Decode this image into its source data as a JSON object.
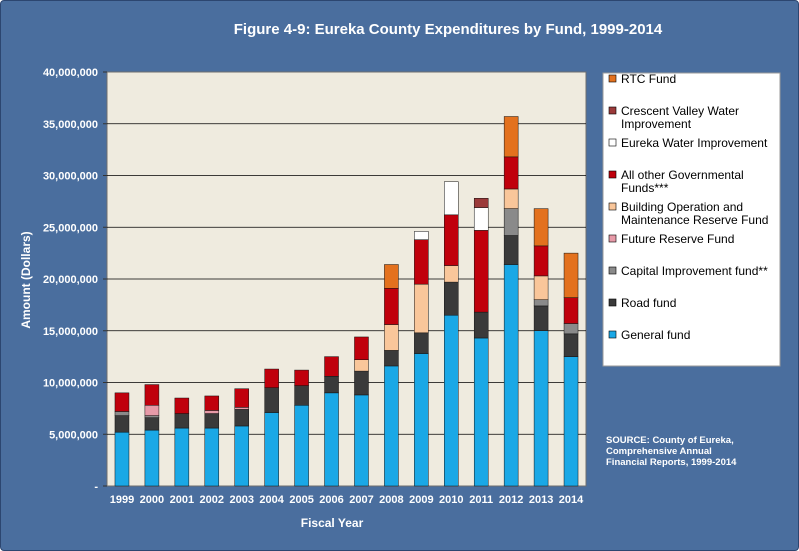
{
  "chart_data": {
    "type": "bar",
    "stacked": true,
    "title": "Figure 4-9: Eureka County Expenditures by Fund, 1999-2014",
    "xlabel": "Fiscal Year",
    "ylabel": "Amount (Dollars)",
    "ylim": [
      0,
      40000000
    ],
    "yticks": [
      0,
      5000000,
      10000000,
      15000000,
      20000000,
      25000000,
      30000000,
      35000000,
      40000000
    ],
    "ytick_labels": [
      "-",
      "5,000,000",
      "10,000,000",
      "15,000,000",
      "20,000,000",
      "25,000,000",
      "30,000,000",
      "35,000,000",
      "40,000,000"
    ],
    "grid": true,
    "legend_position": "right",
    "categories": [
      "1999",
      "2000",
      "2001",
      "2002",
      "2003",
      "2004",
      "2005",
      "2006",
      "2007",
      "2008",
      "2009",
      "2010",
      "2011",
      "2012",
      "2013",
      "2014"
    ],
    "series": [
      {
        "name": "General fund",
        "color": "#1aa8e6",
        "values": [
          5200000,
          5400000,
          5600000,
          5600000,
          5800000,
          7100000,
          7800000,
          9000000,
          8800000,
          11600000,
          12800000,
          16500000,
          14300000,
          21400000,
          15000000,
          12500000
        ]
      },
      {
        "name": "Road fund",
        "color": "#3a3a3a",
        "values": [
          1600000,
          1200000,
          1400000,
          1400000,
          1600000,
          2400000,
          1900000,
          1600000,
          2300000,
          1500000,
          2000000,
          3200000,
          2500000,
          2800000,
          2400000,
          2200000
        ]
      },
      {
        "name": "Capital Improvement fund**",
        "color": "#8a8a8a",
        "values": [
          400000,
          200000,
          0,
          0,
          0,
          0,
          0,
          0,
          0,
          0,
          0,
          0,
          0,
          2600000,
          600000,
          1000000
        ]
      },
      {
        "name": "Future Reserve Fund",
        "color": "#e79aa8",
        "values": [
          0,
          1000000,
          0,
          300000,
          200000,
          0,
          0,
          0,
          0,
          0,
          0,
          0,
          0,
          0,
          0,
          0
        ]
      },
      {
        "name": "Building Operation and Maintenance Reserve Fund",
        "color": "#f9c69a",
        "values": [
          0,
          0,
          0,
          0,
          0,
          0,
          0,
          0,
          1100000,
          2500000,
          4700000,
          1600000,
          0,
          1900000,
          2300000,
          0
        ]
      },
      {
        "name": "All other Governmental Funds***",
        "color": "#c0000c",
        "values": [
          1800000,
          2000000,
          1500000,
          1400000,
          1800000,
          1800000,
          1500000,
          1900000,
          2200000,
          3500000,
          4300000,
          4900000,
          7900000,
          3100000,
          2900000,
          2500000
        ]
      },
      {
        "name": "Eureka Water Improvement",
        "color": "#ffffff",
        "values": [
          0,
          0,
          0,
          0,
          0,
          0,
          0,
          0,
          0,
          0,
          800000,
          3200000,
          2200000,
          0,
          0,
          0
        ]
      },
      {
        "name": "Crescent Valley Water Improvement",
        "color": "#9b3a3a",
        "values": [
          0,
          0,
          0,
          0,
          0,
          0,
          0,
          0,
          0,
          0,
          0,
          0,
          900000,
          0,
          0,
          0
        ]
      },
      {
        "name": "RTC Fund",
        "color": "#e3711e",
        "values": [
          0,
          0,
          0,
          0,
          0,
          0,
          0,
          0,
          0,
          2300000,
          0,
          0,
          0,
          3900000,
          3600000,
          4300000
        ]
      }
    ],
    "legend_order": [
      {
        "series": "RTC Fund",
        "lines": [
          "RTC Fund"
        ]
      },
      {
        "series": "Crescent Valley Water Improvement",
        "lines": [
          "Crescent Valley Water",
          "Improvement"
        ]
      },
      {
        "series": "Eureka Water Improvement",
        "lines": [
          "Eureka Water Improvement"
        ]
      },
      {
        "series": "All other Governmental Funds***",
        "lines": [
          "All other Governmental",
          "Funds***"
        ]
      },
      {
        "series": "Building Operation and Maintenance Reserve Fund",
        "lines": [
          "Building Operation and",
          "Maintenance Reserve Fund"
        ]
      },
      {
        "series": "Future Reserve Fund",
        "lines": [
          "Future Reserve Fund"
        ]
      },
      {
        "series": "Capital Improvement fund**",
        "lines": [
          "Capital Improvement fund**"
        ]
      },
      {
        "series": "Road fund",
        "lines": [
          "Road fund"
        ]
      },
      {
        "series": "General fund",
        "lines": [
          "General fund"
        ]
      }
    ],
    "source_lines": [
      "SOURCE: County of Eureka,",
      "Comprehensive Annual",
      "Financial Reports, 1999-2014"
    ],
    "colors": {
      "background": "#4a6e9e",
      "plot_area": "#efebdf",
      "legend_bg": "#ffffff"
    }
  }
}
